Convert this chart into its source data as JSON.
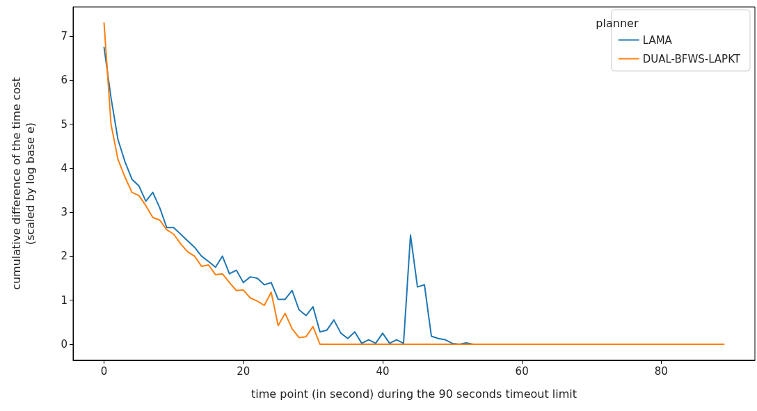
{
  "chart_data": {
    "type": "line",
    "xlabel": "time point (in second) during the 90 seconds timeout limit",
    "ylabel": "cumulative difference of the time cost\n(scaled by log base e)",
    "legend_title": "planner",
    "legend": "top right",
    "grid": false,
    "marker": "none",
    "line_style": "solid",
    "x": [
      0,
      1,
      2,
      3,
      4,
      5,
      6,
      7,
      8,
      9,
      10,
      11,
      12,
      13,
      14,
      15,
      16,
      17,
      18,
      19,
      20,
      21,
      22,
      23,
      24,
      25,
      26,
      27,
      28,
      29,
      30,
      31,
      32,
      33,
      34,
      35,
      36,
      37,
      38,
      39,
      40,
      41,
      42,
      43,
      44,
      45,
      46,
      47,
      48,
      49,
      50,
      51,
      52,
      53,
      54,
      55,
      56,
      57,
      58,
      59,
      60,
      61,
      62,
      63,
      64,
      65,
      66,
      67,
      68,
      69,
      70,
      71,
      72,
      73,
      74,
      75,
      76,
      77,
      78,
      79,
      80,
      81,
      82,
      83,
      84,
      85,
      86,
      87,
      88,
      89
    ],
    "series": [
      {
        "name": "LAMA",
        "color": "#1f77b4",
        "values": [
          6.75,
          5.6,
          4.65,
          4.15,
          3.75,
          3.6,
          3.25,
          3.45,
          3.1,
          2.65,
          2.65,
          2.5,
          2.35,
          2.2,
          2.0,
          1.88,
          1.75,
          2.0,
          1.6,
          1.68,
          1.4,
          1.53,
          1.5,
          1.35,
          1.4,
          1.02,
          1.02,
          1.22,
          0.78,
          0.65,
          0.85,
          0.28,
          0.32,
          0.55,
          0.25,
          0.13,
          0.28,
          0.02,
          0.1,
          0.02,
          0.25,
          0.02,
          0.1,
          0.02,
          2.48,
          1.3,
          1.35,
          0.18,
          0.13,
          0.1,
          0.02,
          0,
          0.03,
          0,
          0,
          null,
          null,
          null,
          null,
          null,
          null,
          null,
          null,
          null,
          null,
          null,
          null,
          null,
          null,
          null,
          null,
          null,
          null,
          null,
          null,
          null,
          null,
          null,
          null,
          null,
          null,
          null,
          null,
          null,
          null,
          null,
          null,
          null,
          null,
          null
        ]
      },
      {
        "name": "DUAL-BFWS-LAPKT",
        "color": "#ff7f0e",
        "values": [
          7.3,
          5.0,
          4.2,
          3.8,
          3.45,
          3.38,
          3.15,
          2.88,
          2.82,
          2.6,
          2.5,
          2.28,
          2.1,
          2.0,
          1.77,
          1.8,
          1.58,
          1.6,
          1.4,
          1.22,
          1.23,
          1.05,
          0.98,
          0.88,
          1.18,
          0.42,
          0.7,
          0.35,
          0.15,
          0.17,
          0.4,
          0,
          0,
          0,
          0,
          0,
          0,
          0,
          0,
          0,
          0,
          0,
          0,
          0,
          0,
          0,
          0,
          0,
          0,
          0,
          0,
          0,
          0,
          0,
          0,
          0,
          0,
          0,
          0,
          0,
          0,
          0,
          0,
          0,
          0,
          0,
          0,
          0,
          0,
          0,
          0,
          0,
          0,
          0,
          0,
          0,
          0,
          0,
          0,
          0,
          0,
          0,
          0,
          0,
          0,
          0,
          0,
          0,
          0,
          0
        ]
      }
    ],
    "xlim": [
      -4.45,
      93.45
    ],
    "xticks": [
      0,
      20,
      40,
      60,
      80
    ],
    "ylim": [
      -0.365,
      7.665
    ],
    "yticks": [
      0,
      1,
      2,
      3,
      4,
      5,
      6,
      7
    ]
  }
}
